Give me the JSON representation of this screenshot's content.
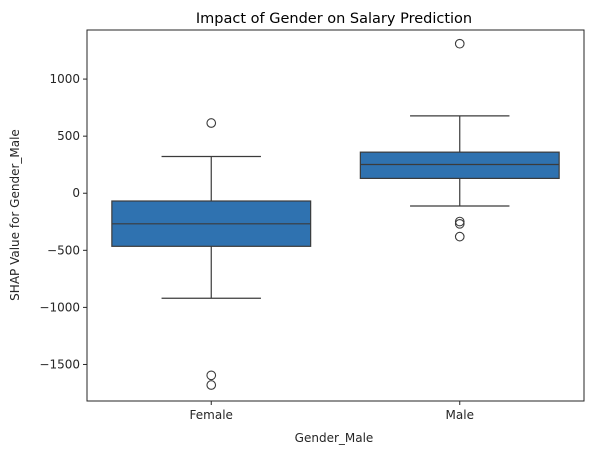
{
  "chart_data": {
    "type": "box",
    "title": "Impact of Gender on Salary Prediction",
    "xlabel": "Gender_Male",
    "ylabel": "SHAP Value for Gender_Male",
    "ylim": [
      -1820,
      1430
    ],
    "yticks": [
      1000,
      500,
      0,
      -500,
      -1000,
      -1500
    ],
    "ytick_labels": [
      "1000",
      "500",
      "0",
      "−500",
      "−1000",
      "−1500"
    ],
    "grid": false,
    "colors": {
      "box": "#2f72b0",
      "line": "#3b3b3b"
    },
    "categories": [
      "Female",
      "Male"
    ],
    "boxes": [
      {
        "category": "Female",
        "whisker_low": -920,
        "q1": -465,
        "median": -268,
        "q3": -68,
        "whisker_high": 322,
        "outliers": [
          615,
          -1595,
          -1680
        ]
      },
      {
        "category": "Male",
        "whisker_low": -112,
        "q1": 130,
        "median": 252,
        "q3": 360,
        "whisker_high": 678,
        "outliers": [
          1310,
          -248,
          -268,
          -380
        ]
      }
    ]
  }
}
